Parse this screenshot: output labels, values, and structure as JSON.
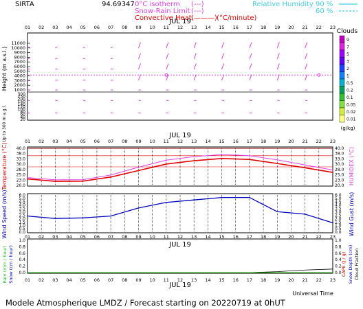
{
  "header": {
    "station": "SIRTA",
    "coords": "94.69347",
    "legend_isotherm": "0°C isotherm",
    "legend_snowrain": "Snow-Rain Limit",
    "legend_convective": "Convective Heat.",
    "legend_sample_a": "(---)",
    "legend_sample_b": "(---)",
    "legend_sample_c": "(———)",
    "legend_units": "(°C/minute)",
    "rh_label": "Relative Humidity",
    "rh_90": "90 %",
    "rh_60": "60 %"
  },
  "colors": {
    "magenta": "#e040e0",
    "red": "#e00000",
    "blue": "#0000c0",
    "cyan": "#40d0e0",
    "green": "#20c020",
    "pink": "#ff40a0"
  },
  "chart_data": [
    {
      "type": "vector-field",
      "title": "JUL 19",
      "ylabel": "Height (m a.s.l.)",
      "ylabel_lower": "Up to 300 m a.g.l.",
      "x_ticks": [
        "01",
        "02",
        "03",
        "04",
        "05",
        "06",
        "07",
        "08",
        "09",
        "10",
        "11",
        "12",
        "13",
        "14",
        "15",
        "16",
        "17",
        "18",
        "19",
        "20",
        "21",
        "22",
        "23"
      ],
      "y_ticks_upper": [
        "11000",
        "10000",
        "9000",
        "8000",
        "7000",
        "6000",
        "5000",
        "4000",
        "3000",
        "2000",
        "1000"
      ],
      "y_ticks_lower": [
        "300",
        "250",
        "200",
        "150",
        "140",
        "120",
        "100",
        "80",
        "60",
        "40",
        "20"
      ],
      "cloud_scale_title": "Clouds",
      "cloud_scale_unit": "(g/kg)",
      "cloud_scale": [
        "9",
        "7",
        "5",
        "3",
        "2",
        "1",
        "0.5",
        "0.2",
        "0.1",
        "0.05",
        "0.02",
        "0.01"
      ],
      "cloud_colors": [
        "#c000c0",
        "#e020e0",
        "#a000ff",
        "#6000ff",
        "#2040ff",
        "#1080ff",
        "#00b0d0",
        "#00a060",
        "#30c030",
        "#80e040",
        "#d0f040",
        "#ffff80"
      ],
      "isotherm_height_m": 4200
    },
    {
      "type": "line",
      "title": "JUL 19",
      "ylabel": "Temperature (°C)",
      "ylabel_right": "HUMIDEX (°C)",
      "y_ticks": [
        "40.0",
        "38.0",
        "33.0",
        "30.0",
        "28.0",
        "25.0",
        "23.0",
        "20.0"
      ],
      "ylim": [
        20,
        40
      ],
      "hours": [
        1,
        3,
        5,
        7,
        9,
        11,
        13,
        15,
        17,
        19,
        21,
        23
      ],
      "series": [
        {
          "name": "Temperature",
          "values": [
            23.5,
            22.2,
            22.3,
            24.5,
            28.0,
            31.5,
            33.3,
            34.5,
            34.0,
            31.8,
            29.5,
            27.0
          ]
        },
        {
          "name": "Humidex",
          "values": [
            24.2,
            23.0,
            23.1,
            25.6,
            29.8,
            33.6,
            35.5,
            36.6,
            36.0,
            33.8,
            31.0,
            28.3
          ]
        }
      ]
    },
    {
      "type": "line",
      "title": "JUL 19",
      "ylabel": "Wind Speed (m/s)",
      "ylabel_right": "Wind Gust (m/s)",
      "y_ticks": [
        "6.0",
        "5.0",
        "4.5",
        "4.0",
        "3.5",
        "3.0",
        "2.5",
        "2.0",
        "1.5",
        "1.0",
        "0.5",
        "0.0"
      ],
      "ylim": [
        0,
        6
      ],
      "hours": [
        1,
        3,
        5,
        7,
        9,
        11,
        13,
        15,
        17,
        19,
        21,
        23
      ],
      "series": [
        {
          "name": "Wind Speed",
          "values": [
            2.6,
            2.2,
            2.3,
            2.6,
            3.9,
            4.8,
            5.2,
            5.6,
            5.6,
            3.3,
            2.9,
            1.5
          ]
        }
      ]
    },
    {
      "type": "line",
      "title": "JUL 19",
      "ylabel_left_a": "Rain (mm / hour)",
      "ylabel_left_b": "Snow (cm / hour)",
      "ylabel_right_a": "CAPE (J / g)",
      "ylabel_right_b": "Snow Depth (cm)",
      "ylabel_right_c": "Cloud Fraction",
      "xlabel": "Universal Time",
      "y_ticks": [
        "1.0",
        "0.8",
        "0.6",
        "0.4",
        "0.2",
        "0.0"
      ],
      "ylim": [
        0,
        1
      ],
      "hours": [
        1,
        3,
        5,
        7,
        9,
        11,
        13,
        15,
        17,
        19,
        21,
        23
      ],
      "series": [
        {
          "name": "CAPE",
          "values": [
            0,
            0,
            0,
            0,
            0,
            0,
            0,
            0,
            0,
            0.03,
            0.08,
            0.11
          ]
        }
      ]
    }
  ],
  "footer": "Modele Atmospherique LMDZ / Forecast starting on 20220719 at 0hUT"
}
